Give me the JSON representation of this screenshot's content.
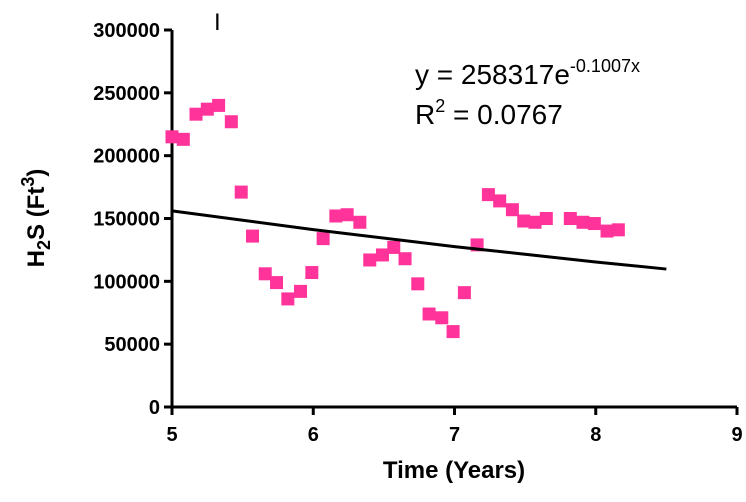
{
  "chart_data": {
    "type": "scatter",
    "x_label": "Time (Years)",
    "y_label_parts": [
      "H",
      "2",
      "S (Ft",
      "3",
      ")"
    ],
    "equation_parts": [
      "y = 258317e",
      "-0.1007x"
    ],
    "r2_parts": [
      "R",
      "2",
      " = 0.0767"
    ],
    "stray_mark": "I",
    "color": "#ff3399",
    "x": [
      5.0,
      5.08,
      5.17,
      5.25,
      5.33,
      5.42,
      5.49,
      5.57,
      5.66,
      5.74,
      5.82,
      5.91,
      5.99,
      6.07,
      6.16,
      6.24,
      6.33,
      6.4,
      6.49,
      6.57,
      6.65,
      6.74,
      6.82,
      6.91,
      6.99,
      7.07,
      7.16,
      7.24,
      7.32,
      7.41,
      7.49,
      7.57,
      7.65,
      7.82,
      7.91,
      7.99,
      8.08,
      8.16
    ],
    "values": [
      215000,
      213000,
      233000,
      237000,
      240000,
      227000,
      171000,
      136000,
      106000,
      99000,
      86000,
      92000,
      107000,
      134000,
      152000,
      153000,
      147000,
      117000,
      121000,
      127000,
      118000,
      98000,
      74000,
      71000,
      60000,
      91000,
      129000,
      169000,
      164000,
      157000,
      148000,
      147000,
      150000,
      150000,
      147000,
      146000,
      140000,
      141000
    ],
    "trendline": {
      "color": "#000000",
      "x": [
        5,
        6,
        7,
        8,
        8.5
      ],
      "values": [
        156100,
        141170,
        127650,
        115420,
        109760
      ]
    },
    "xlim": [
      5,
      9
    ],
    "xticks": [
      5,
      6,
      7,
      8,
      9
    ],
    "ylim": [
      0,
      300000
    ],
    "yticks": [
      0,
      50000,
      100000,
      150000,
      200000,
      250000,
      300000
    ]
  }
}
